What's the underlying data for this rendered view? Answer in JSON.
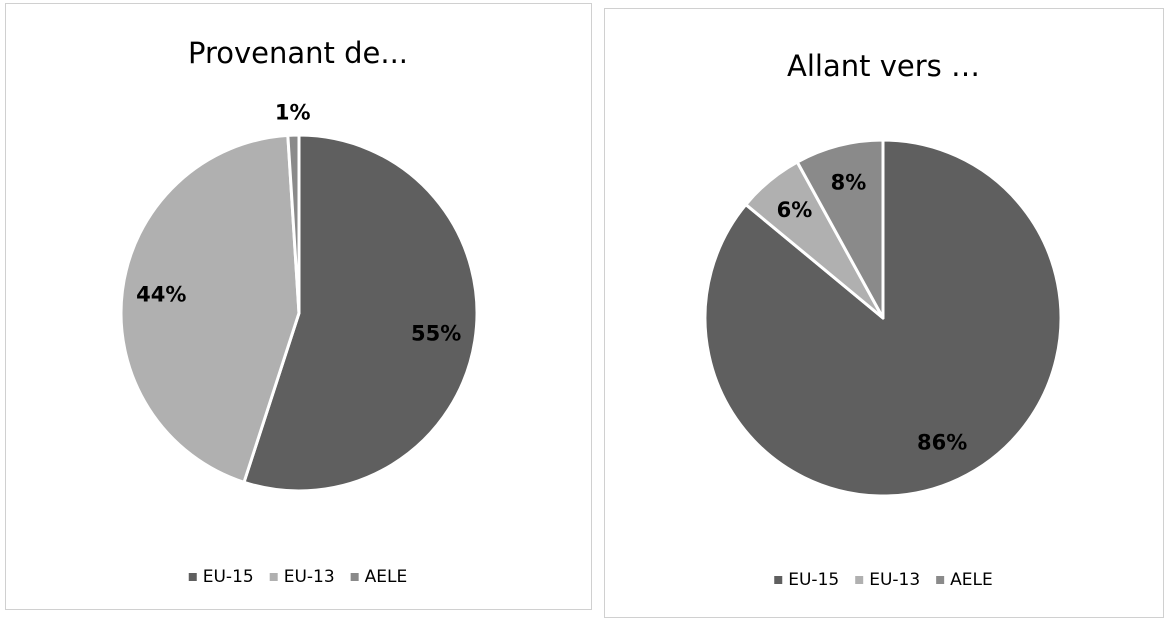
{
  "chart_data": [
    {
      "type": "pie",
      "title": "Provenant de...",
      "categories": [
        "EU-15",
        "EU-13",
        "AELE"
      ],
      "values": [
        55,
        44,
        1
      ],
      "value_labels": [
        "55%",
        "44%",
        "1%"
      ],
      "colors": [
        "#5f5f5f",
        "#b0b0b0",
        "#8a8a8a"
      ]
    },
    {
      "type": "pie",
      "title": "Allant vers …",
      "categories": [
        "EU-15",
        "EU-13",
        "AELE"
      ],
      "values": [
        86,
        6,
        8
      ],
      "value_labels": [
        "86%",
        "6%",
        "8%"
      ],
      "colors": [
        "#5f5f5f",
        "#b0b0b0",
        "#8a8a8a"
      ]
    }
  ]
}
